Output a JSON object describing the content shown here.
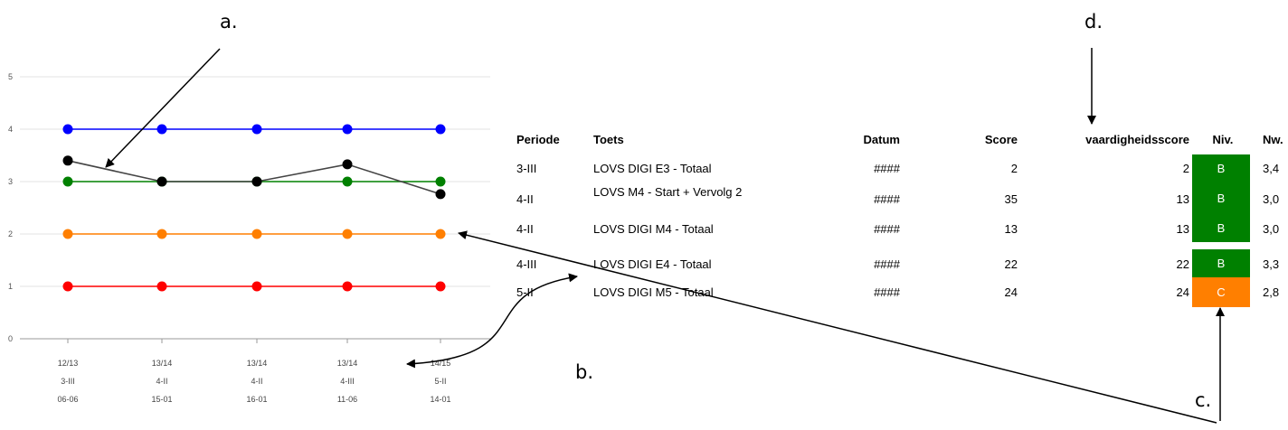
{
  "chart_data": {
    "type": "line",
    "y_ticks": [
      "0",
      "1",
      "2",
      "3",
      "4",
      "5"
    ],
    "ylim": [
      0,
      5
    ],
    "grid": true,
    "categories": [
      {
        "year": "12/13",
        "period": "3-III",
        "date": "06-06"
      },
      {
        "year": "13/14",
        "period": "4-II",
        "date": "15-01"
      },
      {
        "year": "13/14",
        "period": "4-II",
        "date": "16-01"
      },
      {
        "year": "13/14",
        "period": "4-III",
        "date": "11-06"
      },
      {
        "year": "14/15",
        "period": "5-II",
        "date": "14-01"
      }
    ],
    "series": [
      {
        "color": "#0000ff",
        "values": [
          4,
          4,
          4,
          4,
          4
        ]
      },
      {
        "color": "#008000",
        "values": [
          3,
          3,
          3,
          3,
          3
        ]
      },
      {
        "color": "#ff7f00",
        "values": [
          2,
          2,
          2,
          2,
          2
        ]
      },
      {
        "color": "#ff0000",
        "values": [
          1,
          1,
          1,
          1,
          1
        ]
      },
      {
        "color": "#000000",
        "values": [
          3.4,
          3.0,
          3.0,
          3.33,
          2.76
        ]
      }
    ]
  },
  "annotations": {
    "a": "a.",
    "b": "b.",
    "c": "c.",
    "d": "d."
  },
  "table": {
    "headers": {
      "periode": "Periode",
      "toets": "Toets",
      "datum": "Datum",
      "score": "Score",
      "vaardigheidsscore": "vaardigheidsscore",
      "niv": "Niv.",
      "nw": "Nw."
    },
    "rows": [
      {
        "periode": "3-III",
        "toets": "LOVS DIGI E3 - Totaal",
        "datum": "####",
        "score": "2",
        "vaardigheidsscore": "2",
        "niv": "B",
        "nw": "3,4"
      },
      {
        "periode": "4-II",
        "toets": "LOVS M4 - Start + Vervolg 2",
        "datum": "####",
        "score": "35",
        "vaardigheidsscore": "13",
        "niv": "B",
        "nw": "3,0"
      },
      {
        "periode": "4-II",
        "toets": "LOVS DIGI M4 - Totaal",
        "datum": "####",
        "score": "13",
        "vaardigheidsscore": "13",
        "niv": "B",
        "nw": "3,0"
      },
      {
        "periode": "4-III",
        "toets": "LOVS DIGI E4 - Totaal",
        "datum": "####",
        "score": "22",
        "vaardigheidsscore": "22",
        "niv": "B",
        "nw": "3,3"
      },
      {
        "periode": "5-II",
        "toets": "LOVS DIGI M5 - Totaal",
        "datum": "####",
        "score": "24",
        "vaardigheidsscore": "24",
        "niv": "C",
        "nw": "2,8"
      }
    ]
  },
  "colors": {
    "niv_B": "#008000",
    "niv_C": "#ff7f00"
  }
}
